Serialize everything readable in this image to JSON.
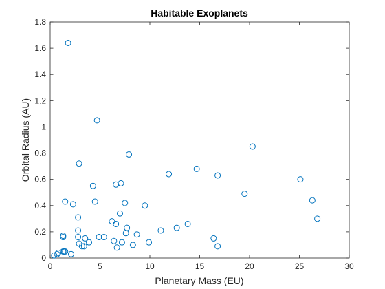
{
  "chart_data": {
    "type": "scatter",
    "title": "Habitable Exoplanets",
    "xlabel": "Planetary Mass (EU)",
    "ylabel": "Orbital Radius (AU)",
    "xlim": [
      0,
      30
    ],
    "ylim": [
      0,
      1.8
    ],
    "x_ticks": [
      "0",
      "5",
      "10",
      "15",
      "20",
      "25",
      "30"
    ],
    "y_ticks": [
      "0",
      "0.2",
      "0.4",
      "0.6",
      "0.8",
      "1",
      "1.2",
      "1.4",
      "1.6",
      "1.8"
    ],
    "grid": false,
    "marker": "open-circle",
    "marker_color": "#0072bd",
    "axis_color": "#262626",
    "series": [
      {
        "x": [
          1.8,
          4.7,
          2.9,
          7.9,
          20.3,
          14.7,
          11.9,
          16.8,
          25.1,
          6.6,
          7.1,
          4.3,
          19.5,
          26.3,
          1.5,
          4.5,
          2.3,
          7.5,
          9.5,
          7.0,
          26.8,
          2.8,
          6.2,
          6.6,
          13.8,
          7.7,
          12.7,
          11.1,
          2.8,
          1.3,
          1.3,
          8.7,
          7.6,
          4.9,
          5.4,
          2.8,
          3.5,
          16.4,
          6.4,
          7.2,
          9.9,
          3.9,
          2.9,
          8.3,
          3.4,
          16.8,
          6.7,
          3.2,
          1.5,
          1.3,
          1.4,
          0.8,
          0.7,
          2.1,
          0.4
        ],
        "y": [
          1.64,
          1.05,
          0.72,
          0.79,
          0.85,
          0.68,
          0.64,
          0.63,
          0.6,
          0.56,
          0.57,
          0.55,
          0.49,
          0.44,
          0.43,
          0.43,
          0.41,
          0.42,
          0.4,
          0.34,
          0.3,
          0.31,
          0.28,
          0.26,
          0.26,
          0.23,
          0.23,
          0.21,
          0.21,
          0.17,
          0.16,
          0.18,
          0.19,
          0.16,
          0.16,
          0.16,
          0.15,
          0.15,
          0.13,
          0.12,
          0.12,
          0.12,
          0.11,
          0.1,
          0.09,
          0.09,
          0.08,
          0.09,
          0.05,
          0.05,
          0.05,
          0.04,
          0.03,
          0.03,
          0.02
        ]
      }
    ]
  }
}
